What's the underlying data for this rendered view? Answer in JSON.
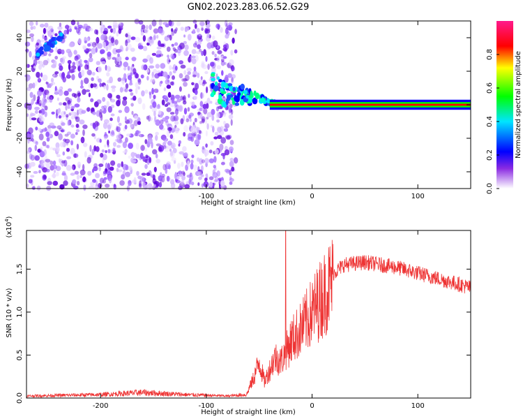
{
  "figure": {
    "title": "GN02.2023.283.06.52.G29"
  },
  "chart_data": [
    {
      "type": "heatmap",
      "xlabel": "Height of straight line (km)",
      "ylabel": "Frequency (Hz)",
      "xlim": [
        -270,
        150
      ],
      "ylim": [
        -50,
        50
      ],
      "xticks": [
        -200,
        -100,
        0,
        100
      ],
      "yticks": [
        -40,
        -20,
        0,
        20,
        40
      ],
      "colorbar": {
        "label": "Normalized spectral amplitude",
        "range": [
          0.0,
          1.0
        ],
        "ticks": [
          "0.0",
          "0.2",
          "0.4",
          "0.6",
          "0.8"
        ],
        "colormap": "white-purple-blue-cyan-green-yellow-red-pink",
        "colors": [
          "#ffffff",
          "#7a00ff",
          "#0000ff",
          "#00ffff",
          "#00ff00",
          "#ffff00",
          "#ff0000",
          "#ff1493"
        ]
      },
      "description_points": {
        "noise_region_x": [
          -270,
          -72
        ],
        "tone_region_x": [
          -40,
          150
        ],
        "tone_frequency": 0,
        "bright_streak": [
          {
            "x": -260,
            "y": 30
          },
          {
            "x": -235,
            "y": 42
          }
        ]
      }
    },
    {
      "type": "line",
      "xlabel": "Height of straight line (km)",
      "ylabel": "SNR (10 * v/v)",
      "yunit": "(x10^4)",
      "yunit_base": "(x10",
      "yunit_exp": "4",
      "xlim": [
        -270,
        150
      ],
      "ylim": [
        0,
        1.95
      ],
      "xticks": [
        -200,
        -100,
        0,
        100
      ],
      "yticks": [
        "0.0",
        "0.5",
        "1.0",
        "1.5"
      ],
      "ytick_values": [
        0,
        0.5,
        1.0,
        1.5
      ],
      "line_color": "#ee3333",
      "envelope": [
        {
          "x": -270,
          "y": 0.03
        },
        {
          "x": -200,
          "y": 0.05
        },
        {
          "x": -160,
          "y": 0.08
        },
        {
          "x": -120,
          "y": 0.05
        },
        {
          "x": -80,
          "y": 0.03
        },
        {
          "x": -62,
          "y": 0.05
        },
        {
          "x": -55,
          "y": 0.25
        },
        {
          "x": -50,
          "y": 0.45
        },
        {
          "x": -45,
          "y": 0.2
        },
        {
          "x": -40,
          "y": 0.35
        },
        {
          "x": -35,
          "y": 0.5
        },
        {
          "x": -30,
          "y": 0.45
        },
        {
          "x": -25,
          "y": 0.55
        },
        {
          "x": -20,
          "y": 0.7
        },
        {
          "x": -10,
          "y": 0.85
        },
        {
          "x": 0,
          "y": 1.05
        },
        {
          "x": 10,
          "y": 1.25
        },
        {
          "x": 20,
          "y": 1.45
        },
        {
          "x": 30,
          "y": 1.55
        },
        {
          "x": 50,
          "y": 1.58
        },
        {
          "x": 80,
          "y": 1.52
        },
        {
          "x": 110,
          "y": 1.42
        },
        {
          "x": 140,
          "y": 1.32
        },
        {
          "x": 150,
          "y": 1.28
        }
      ],
      "spike": {
        "x": -25,
        "y": 1.95
      }
    }
  ]
}
